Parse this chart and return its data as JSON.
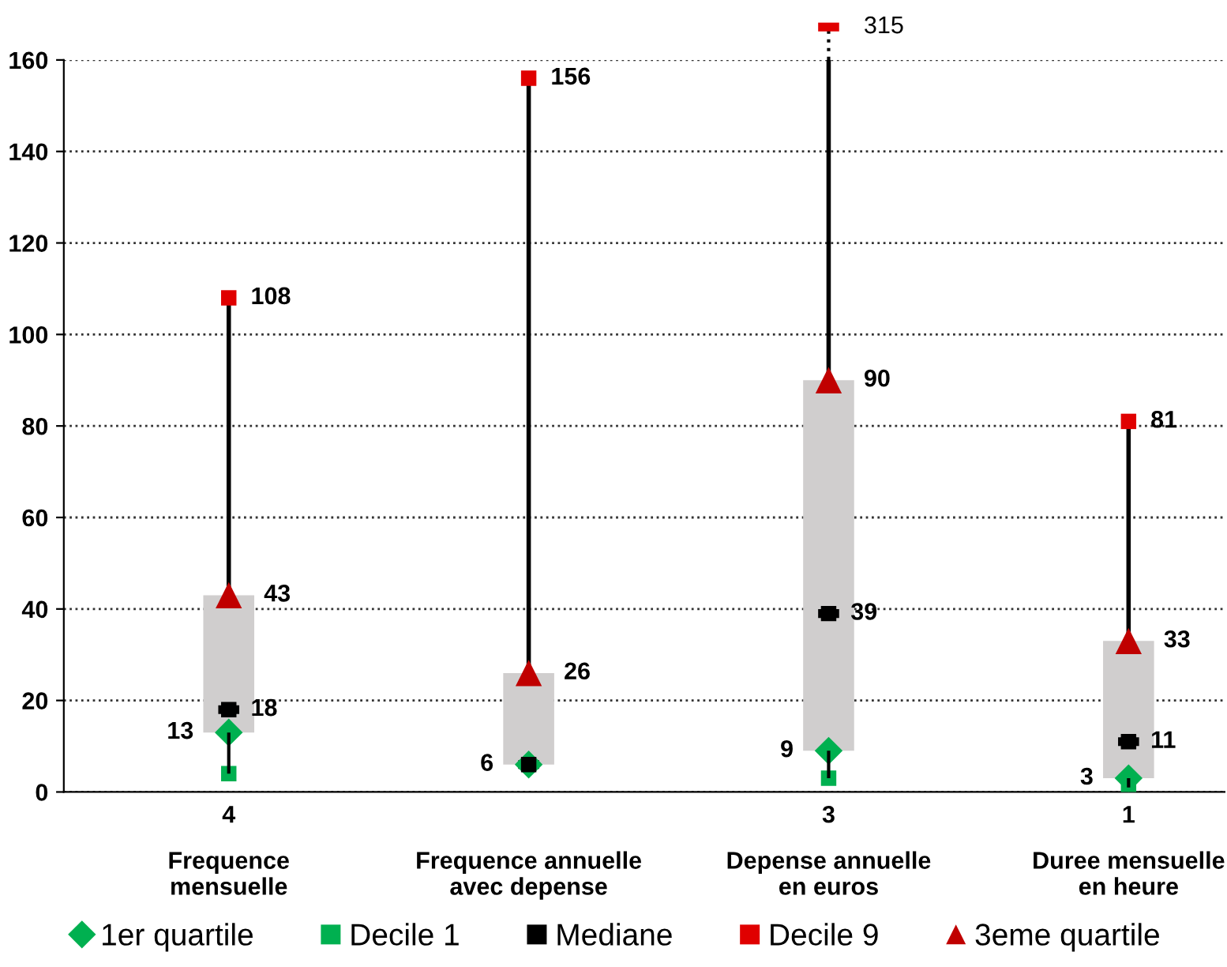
{
  "chart_data": {
    "type": "box",
    "categories": [
      "Frequence\nmensuelle",
      "Frequence annuelle\navec depense",
      "Depense annuelle\nen euros",
      "Duree mensuelle\nen heure"
    ],
    "boxes": [
      {
        "low": 4,
        "q1": 13,
        "median": 18,
        "q3": 43,
        "high": 108
      },
      {
        "low": null,
        "q1": 6,
        "median": 6,
        "q3": 26,
        "high": 156
      },
      {
        "low": 3,
        "q1": 9,
        "median": 39,
        "q3": 90,
        "high": null
      },
      {
        "low": 1,
        "q1": 3,
        "median": 11,
        "q3": 33,
        "high": 81
      }
    ],
    "series": [
      {
        "name": "1er quartile",
        "type": "scatter",
        "marker": "diamond",
        "color": "#00b050",
        "values": [
          13,
          6,
          9,
          3
        ],
        "value_labels": [
          "13",
          "6",
          "9",
          "3"
        ]
      },
      {
        "name": "Decile 1",
        "type": "scatter",
        "marker": "square",
        "color": "#00b050",
        "values": [
          4,
          null,
          3,
          1
        ],
        "value_labels": [
          "4",
          null,
          "3",
          "1"
        ]
      },
      {
        "name": "Mediane",
        "type": "scatter",
        "marker": "square",
        "color": "#000000",
        "values": [
          18,
          6,
          39,
          11
        ],
        "value_labels": [
          "18",
          null,
          "39",
          "11"
        ]
      },
      {
        "name": "Decile 9",
        "type": "scatter",
        "marker": "square",
        "color": "#e00000",
        "values": [
          108,
          156,
          null,
          81
        ],
        "value_labels": [
          "108",
          "156",
          null,
          "81"
        ]
      },
      {
        "name": "3eme quartile",
        "type": "scatter",
        "marker": "triangle",
        "color": "#c00000",
        "values": [
          43,
          26,
          90,
          33
        ],
        "value_labels": [
          "43",
          "26",
          "90",
          "33"
        ]
      }
    ],
    "ylim": [
      0,
      160
    ],
    "yticks": [
      0,
      20,
      40,
      60,
      80,
      100,
      120,
      140,
      160
    ],
    "grid": "y",
    "legend": "bottom",
    "annotations": [
      "315"
    ]
  }
}
